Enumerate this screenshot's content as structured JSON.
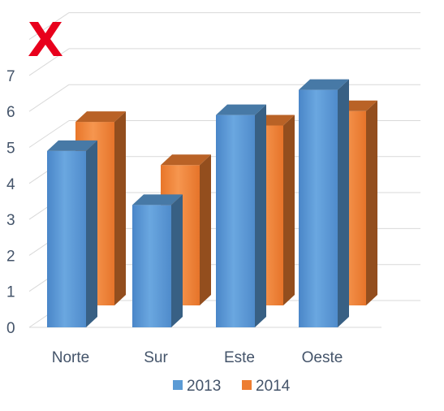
{
  "chart_data": {
    "type": "bar",
    "style": "3d-clustered-column",
    "categories": [
      "Norte",
      "Sur",
      "Este",
      "Oeste"
    ],
    "series": [
      {
        "name": "2013",
        "values": [
          4.9,
          3.4,
          5.9,
          6.6
        ],
        "color": "#5b9bd5"
      },
      {
        "name": "2014",
        "values": [
          5.1,
          3.9,
          5.0,
          5.4
        ],
        "color": "#ed7d31"
      }
    ],
    "ylim": [
      0,
      8
    ],
    "yticks": [
      "0",
      "1",
      "2",
      "3",
      "4",
      "5",
      "6",
      "7"
    ],
    "grid": true,
    "legend_position": "bottom"
  },
  "overlay": {
    "icon": "red-x-mark-icon",
    "color": "#e8001c"
  }
}
